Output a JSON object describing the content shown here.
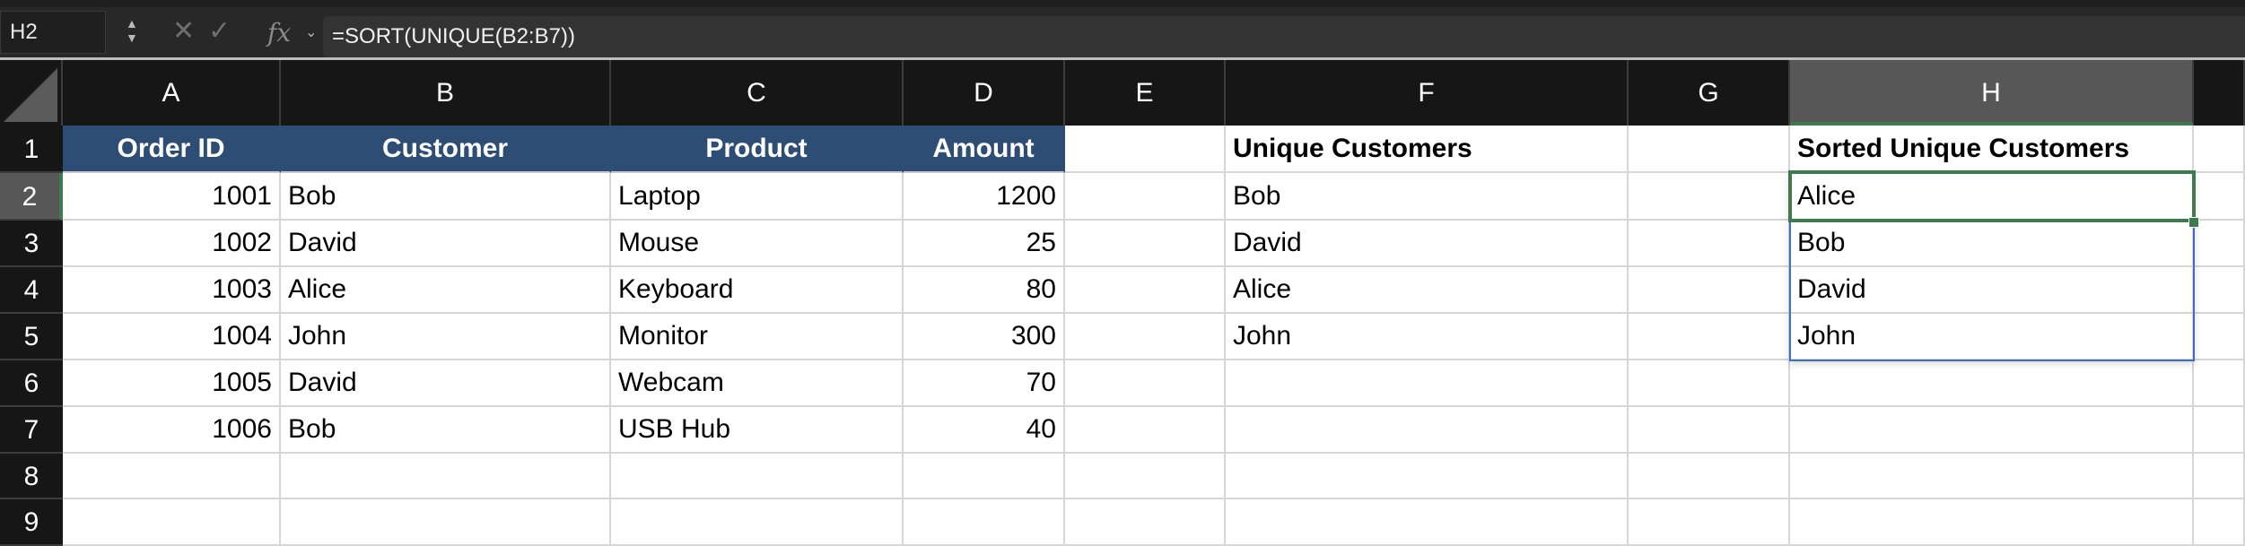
{
  "formula_bar": {
    "name_box": "H2",
    "cancel_icon": "x-icon",
    "enter_icon": "check-icon",
    "fx_label": "fx",
    "formula": "=SORT(UNIQUE(B2:B7))"
  },
  "columns": [
    "A",
    "B",
    "C",
    "D",
    "E",
    "F",
    "G",
    "H"
  ],
  "rows": [
    "1",
    "2",
    "3",
    "4",
    "5",
    "6",
    "7",
    "8",
    "9"
  ],
  "selected_cell": "H2",
  "colors": {
    "header_fill": "#2e4d75",
    "selection": "#3f7a4e",
    "spill_border": "#3e6ec5"
  },
  "cells": {
    "A1": "Order ID",
    "B1": "Customer",
    "C1": "Product",
    "D1": "Amount",
    "F1": "Unique Customers",
    "H1": "Sorted Unique Customers",
    "A2": "1001",
    "B2": "Bob",
    "C2": "Laptop",
    "D2": "1200",
    "F2": "Bob",
    "H2": "Alice",
    "A3": "1002",
    "B3": "David",
    "C3": "Mouse",
    "D3": "25",
    "F3": "David",
    "H3": "Bob",
    "A4": "1003",
    "B4": "Alice",
    "C4": "Keyboard",
    "D4": "80",
    "F4": "Alice",
    "H4": "David",
    "A5": "1004",
    "B5": "John",
    "C5": "Monitor",
    "D5": "300",
    "F5": "John",
    "H5": "John",
    "A6": "1005",
    "B6": "David",
    "C6": "Webcam",
    "D6": "70",
    "A7": "1006",
    "B7": "Bob",
    "C7": "USB Hub",
    "D7": "40"
  }
}
